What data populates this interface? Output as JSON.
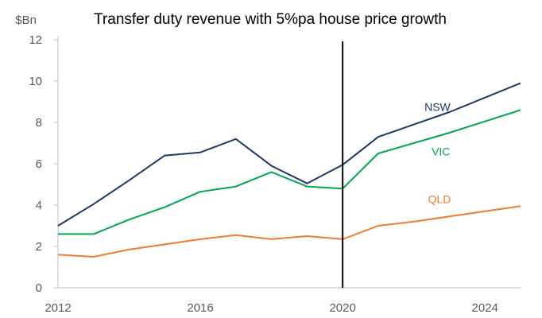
{
  "chart_data": {
    "type": "line",
    "title": "Transfer duty revenue with 5%pa house price growth",
    "ylabel": "$Bn",
    "xlabel": "",
    "x": [
      2012,
      2013,
      2014,
      2015,
      2016,
      2017,
      2018,
      2019,
      2020,
      2021,
      2022,
      2023,
      2024,
      2025
    ],
    "xlim": [
      2012,
      2025
    ],
    "ylim": [
      0,
      12
    ],
    "x_ticks": [
      "2012",
      "2016",
      "2020",
      "2024"
    ],
    "y_ticks": [
      "0",
      "2",
      "4",
      "6",
      "8",
      "10",
      "12"
    ],
    "grid": false,
    "legend": "none",
    "vertical_marker_x": 2020,
    "series": [
      {
        "name": "NSW",
        "color": "#1F3864",
        "values": [
          3.0,
          4.05,
          5.2,
          6.4,
          6.55,
          7.2,
          5.9,
          5.05,
          5.95,
          7.3,
          7.9,
          8.5,
          9.2,
          9.9
        ]
      },
      {
        "name": "VIC",
        "color": "#00A651",
        "values": [
          2.6,
          2.6,
          3.3,
          3.9,
          4.65,
          4.9,
          5.6,
          4.9,
          4.8,
          6.5,
          7.0,
          7.5,
          8.05,
          8.6
        ]
      },
      {
        "name": "QLD",
        "color": "#ED7D31",
        "values": [
          1.6,
          1.5,
          1.85,
          2.1,
          2.35,
          2.55,
          2.35,
          2.5,
          2.35,
          3.0,
          3.2,
          3.45,
          3.7,
          3.95
        ]
      }
    ]
  }
}
